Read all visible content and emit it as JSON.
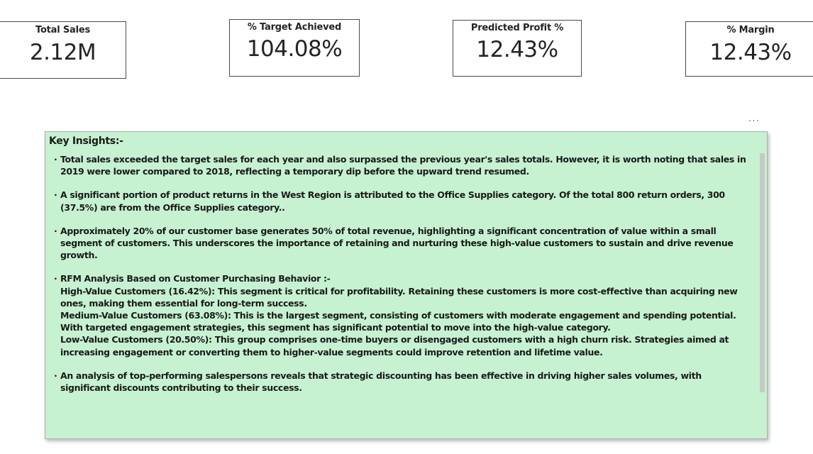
{
  "kpis": [
    {
      "label": "Total Sales",
      "value": "2.12M"
    },
    {
      "label": "% Target Achieved",
      "value": "104.08%"
    },
    {
      "label": "Predicted Profit %",
      "value": "12.43%"
    },
    {
      "label": "% Margin",
      "value": "12.43%"
    }
  ],
  "more_options": "...",
  "insights": {
    "title": "Key Insights:-",
    "bullets": [
      {
        "lines": [
          "Total sales exceeded the target sales for each year and also surpassed the previous year's sales totals. However, it is worth noting that sales in 2019 were lower compared to 2018, reflecting a temporary dip before the upward trend resumed."
        ]
      },
      {
        "lines": [
          "A significant portion of product returns in the West Region is attributed to the Office Supplies category. Of the total 800 return orders, 300 (37.5%) are from the Office Supplies category.."
        ]
      },
      {
        "lines": [
          "Approximately 20% of our customer base generates 50% of total revenue, highlighting a significant concentration of value within a small segment of customers. This underscores the importance of retaining and nurturing these high-value customers to sustain and drive revenue growth."
        ]
      },
      {
        "lines": [
          "RFM Analysis Based on Customer Purchasing Behavior :-",
          "High-Value Customers (16.42%): This segment is critical for profitability. Retaining these customers is more cost-effective than acquiring new ones, making them essential for long-term success.",
          "Medium-Value Customers (63.08%): This is the largest segment, consisting of customers with moderate engagement and spending potential. With targeted engagement strategies, this segment has significant potential to move into the high-value category.",
          "Low-Value Customers (20.50%): This group comprises one-time buyers or disengaged customers with a high churn risk. Strategies aimed at increasing engagement or converting them to higher-value segments could improve retention and lifetime value."
        ]
      },
      {
        "lines": [
          "An analysis of top-performing salespersons reveals that strategic discounting has been effective in driving higher sales volumes, with significant discounts contributing to their success."
        ]
      }
    ]
  },
  "colors": {
    "insights_background": "#c6f2d1",
    "card_border": "#4a4a4a",
    "text": "#1a1a1a"
  }
}
